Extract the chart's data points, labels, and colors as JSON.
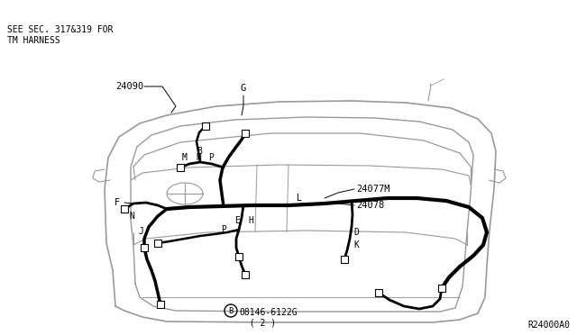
{
  "bg_color": "#ffffff",
  "line_color": "#000000",
  "vehicle_color": "#999999",
  "wire_color": "#000000",
  "labels": {
    "see_sec": "SEE SEC. 317&319 FOR\nTM HARNESS",
    "part1": "24090",
    "part2": "24077M",
    "part3": "24078",
    "ref1": "08146-6122G\n  ( 2 )",
    "ref2": "R24000A0",
    "G": "G",
    "F": "F",
    "N": "N",
    "J": "J",
    "B_lbl": "B",
    "M": "M",
    "N2": "N",
    "P": "P",
    "E": "E",
    "H": "H",
    "P2": "P",
    "L": "L",
    "D": "D",
    "K": "K"
  },
  "figsize": [
    6.4,
    3.72
  ],
  "dpi": 100
}
